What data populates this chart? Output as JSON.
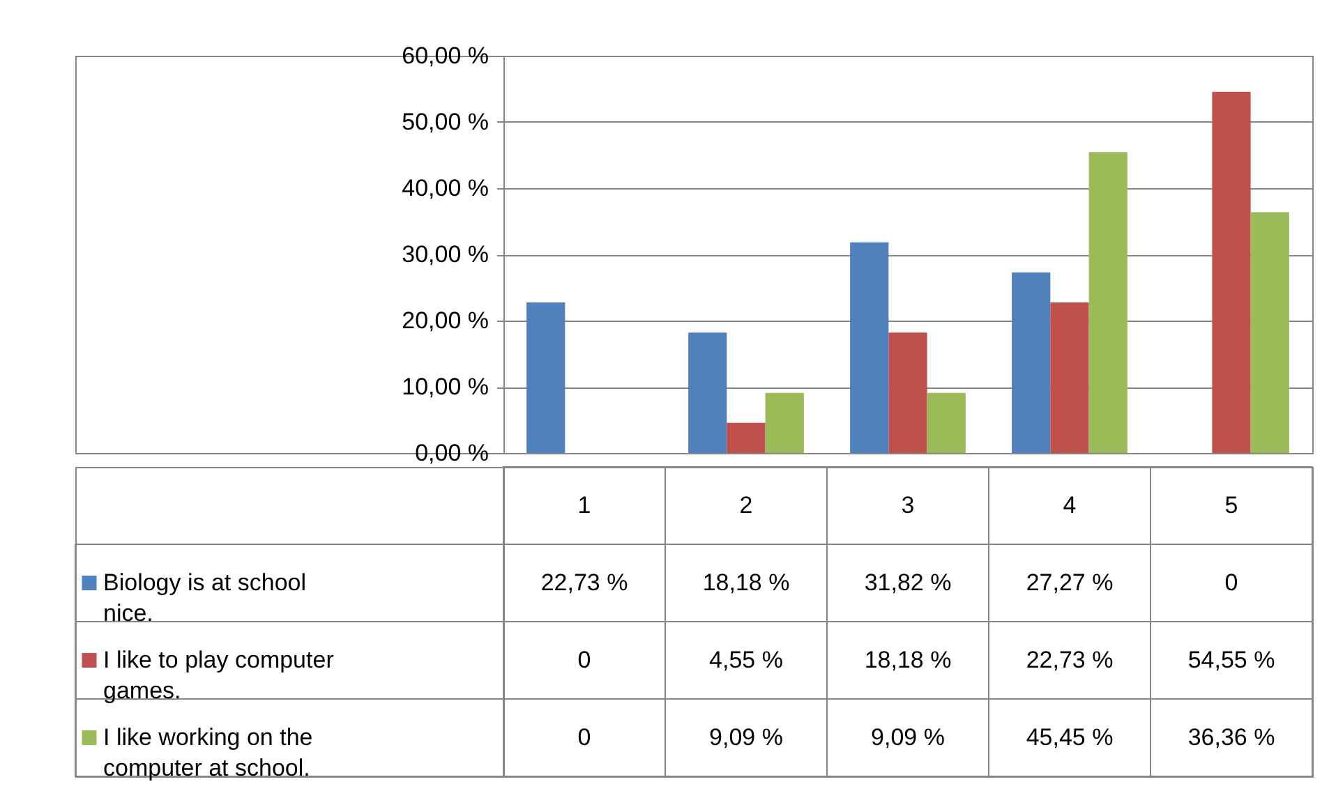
{
  "chart_data": {
    "type": "bar",
    "categories": [
      "1",
      "2",
      "3",
      "4",
      "5"
    ],
    "series": [
      {
        "name": "Biology is at school nice.",
        "color": "#4f81bd",
        "values": [
          22.73,
          18.18,
          31.82,
          27.27,
          0
        ],
        "value_labels": [
          "22,73 %",
          "18,18 %",
          "31,82 %",
          "27,27 %",
          "0"
        ]
      },
      {
        "name": "I like to play computer games.",
        "color": "#c0504d",
        "values": [
          0,
          4.55,
          18.18,
          22.73,
          54.55
        ],
        "value_labels": [
          "0",
          "4,55 %",
          "18,18 %",
          "22,73 %",
          "54,55 %"
        ]
      },
      {
        "name": "I like working on the computer at school.",
        "color": "#9bbb59",
        "values": [
          0,
          9.09,
          9.09,
          45.45,
          36.36
        ],
        "value_labels": [
          "0",
          "9,09 %",
          "9,09 %",
          "45,45 %",
          "36,36 %"
        ]
      }
    ],
    "ylim": [
      0,
      60
    ],
    "yticks": [
      {
        "value": 0,
        "label": "0,00 %"
      },
      {
        "value": 10,
        "label": "10,00 %"
      },
      {
        "value": 20,
        "label": "20,00 %"
      },
      {
        "value": 30,
        "label": "30,00 %"
      },
      {
        "value": 40,
        "label": "40,00 %"
      },
      {
        "value": 50,
        "label": "50,00 %"
      },
      {
        "value": 60,
        "label": "60,00 %"
      }
    ],
    "grid": "y",
    "legend": "bottom"
  }
}
